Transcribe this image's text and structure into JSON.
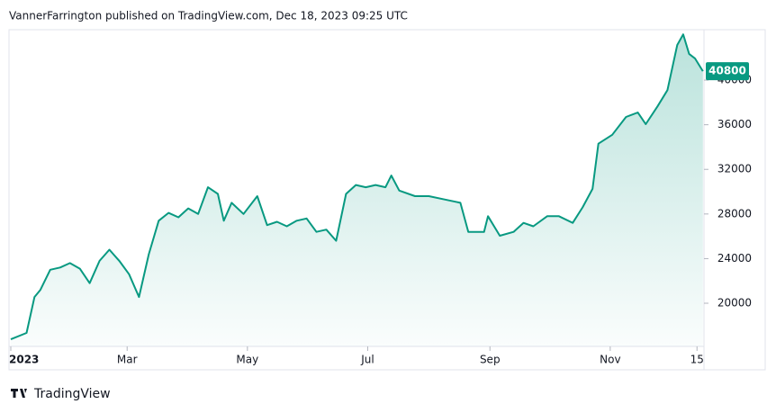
{
  "chart_data": {
    "type": "area",
    "attribution": "VannerFarrington published on TradingView.com, Dec 18, 2023 09:25 UTC",
    "branding": "TradingView",
    "color": "#089981",
    "x": [
      0,
      8,
      12,
      15,
      20,
      25,
      30,
      35,
      40,
      45,
      50,
      55,
      60,
      65,
      70,
      75,
      80,
      85,
      90,
      95,
      100,
      105,
      108,
      112,
      118,
      125,
      130,
      135,
      140,
      145,
      150,
      155,
      160,
      165,
      170,
      175,
      180,
      185,
      190,
      193,
      197,
      205,
      212,
      220,
      228,
      232,
      240,
      242,
      248,
      255,
      260,
      265,
      272,
      278,
      285,
      290,
      295,
      298,
      305,
      312,
      318,
      322,
      328,
      333,
      338,
      341,
      344,
      347,
      351
    ],
    "values": [
      16770,
      17340,
      20560,
      21200,
      23000,
      23200,
      23600,
      23100,
      21800,
      23800,
      24800,
      23800,
      22600,
      20560,
      24400,
      27400,
      28100,
      27700,
      28500,
      28000,
      30400,
      29800,
      27400,
      29000,
      28000,
      29600,
      27000,
      27300,
      26900,
      27400,
      27600,
      26400,
      26600,
      25600,
      29800,
      30600,
      30400,
      30600,
      30400,
      31450,
      30100,
      29600,
      29600,
      29300,
      29000,
      26400,
      26400,
      27800,
      26050,
      26400,
      27200,
      26900,
      27800,
      27800,
      27200,
      28600,
      30250,
      34300,
      35100,
      36700,
      37100,
      36050,
      37650,
      39100,
      43150,
      44100,
      42350,
      41950,
      40800
    ],
    "xlim": [
      0,
      352
    ],
    "xticks": [
      {
        "value": 0,
        "label": "2023"
      },
      {
        "value": 59,
        "label": "Mar"
      },
      {
        "value": 120,
        "label": "May"
      },
      {
        "value": 181,
        "label": "Jul"
      },
      {
        "value": 243,
        "label": "Sep"
      },
      {
        "value": 304,
        "label": "Nov"
      },
      {
        "value": 348,
        "label": "15"
      }
    ],
    "ylim": [
      16130,
      44520
    ],
    "yticks": [
      20000,
      24000,
      28000,
      32000,
      36000,
      40000
    ]
  }
}
